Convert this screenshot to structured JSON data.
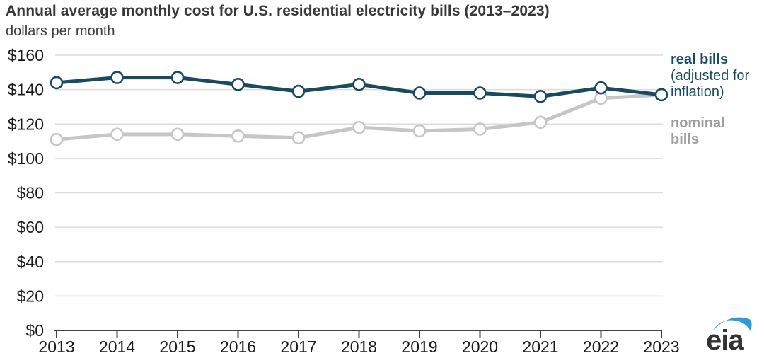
{
  "header": {
    "title": "Annual average monthly cost for U.S. residential electricity bills (2013–2023)",
    "subtitle": "dollars per month"
  },
  "chart_data": {
    "type": "line",
    "title": "Annual average monthly cost for U.S. residential electricity bills (2013–2023)",
    "units": "dollars per month",
    "x": [
      2013,
      2014,
      2015,
      2016,
      2017,
      2018,
      2019,
      2020,
      2021,
      2022,
      2023
    ],
    "series": [
      {
        "id": "nominal-bills",
        "name": "nominal bills",
        "color": "#c6c6c6",
        "values": [
          111,
          114,
          114,
          113,
          112,
          118,
          116,
          117,
          121,
          135,
          137
        ]
      },
      {
        "id": "real-bills",
        "name": "real bills (adjusted for inflation)",
        "color": "#1a4a5f",
        "values": [
          144,
          147,
          147,
          143,
          139,
          143,
          138,
          138,
          136,
          141,
          137
        ]
      }
    ],
    "ylim": [
      0,
      160
    ],
    "y_ticks": [
      0,
      20,
      40,
      60,
      80,
      100,
      120,
      140,
      160
    ],
    "y_tick_labels": [
      "$0",
      "$20",
      "$40",
      "$60",
      "$80",
      "$100",
      "$120",
      "$140",
      "$160"
    ],
    "grid": true,
    "legend_position": "right",
    "marker": "open-circle"
  },
  "legend": {
    "real": {
      "label": "real bills",
      "note_line1": "(adjusted for",
      "note_line2": "inflation)",
      "color": "#1a4a5f"
    },
    "nominal": {
      "label_line1": "nominal",
      "label_line2": "bills",
      "color": "#9e9e9e"
    }
  },
  "logo": {
    "text": "eia",
    "swoosh_color": "#2b9cd8",
    "text_color": "#333333"
  },
  "colors": {
    "grid": "#dcdcdc",
    "axis": "#404040",
    "tick_text": "#1a1a1a"
  }
}
